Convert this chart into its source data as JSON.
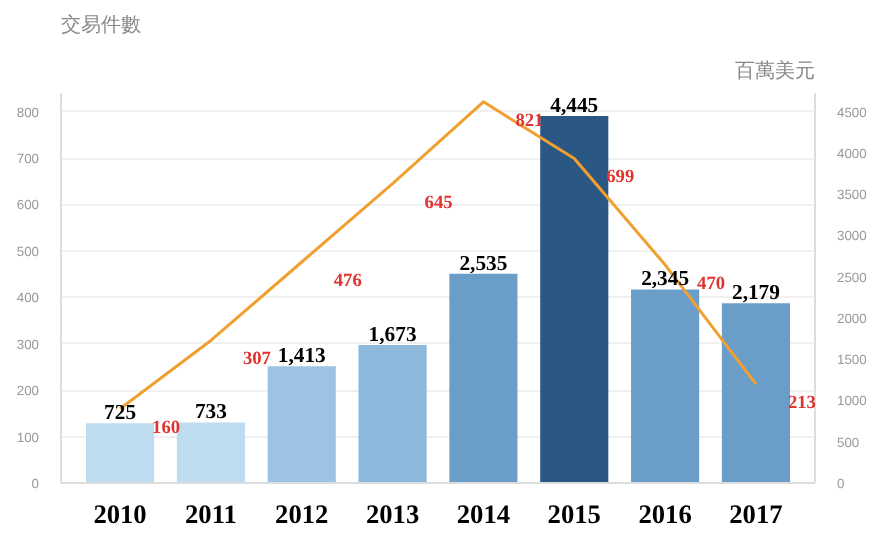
{
  "chart_data": {
    "type": "bar",
    "ylabel": "交易件數",
    "y2label": "百萬美元",
    "categories": [
      "2010",
      "2011",
      "2012",
      "2013",
      "2014",
      "2015",
      "2016",
      "2017"
    ],
    "series": [
      {
        "axis": "y2",
        "colors": [
          "#bddcf0",
          "#bddcf0",
          "#9cc3e3",
          "#8cb8dc",
          "#6a9ec9",
          "#2a5783",
          "#6a9ec9",
          "#6a9ec9"
        ],
        "values": [
          725,
          733,
          1413,
          1673,
          2535,
          4445,
          2345,
          2179
        ],
        "value_labels": [
          "725",
          "733",
          "1,413",
          "1,673",
          "2,535",
          "4,445",
          "2,345",
          "2,179"
        ]
      },
      {
        "type": "line",
        "axis": "y",
        "color": "#f0a030",
        "values": [
          160,
          307,
          476,
          645,
          821,
          699,
          470,
          213
        ]
      }
    ],
    "ylim": [
      0,
      840
    ],
    "yticks": [
      0,
      100,
      200,
      300,
      400,
      500,
      600,
      700,
      800
    ],
    "y2lim": [
      0,
      4725
    ],
    "y2ticks": [
      0,
      500,
      1000,
      1500,
      2000,
      2500,
      3000,
      3500,
      4000,
      4500
    ],
    "data_labels": true,
    "grid": "y",
    "marker": "none",
    "line_style": "solid"
  }
}
